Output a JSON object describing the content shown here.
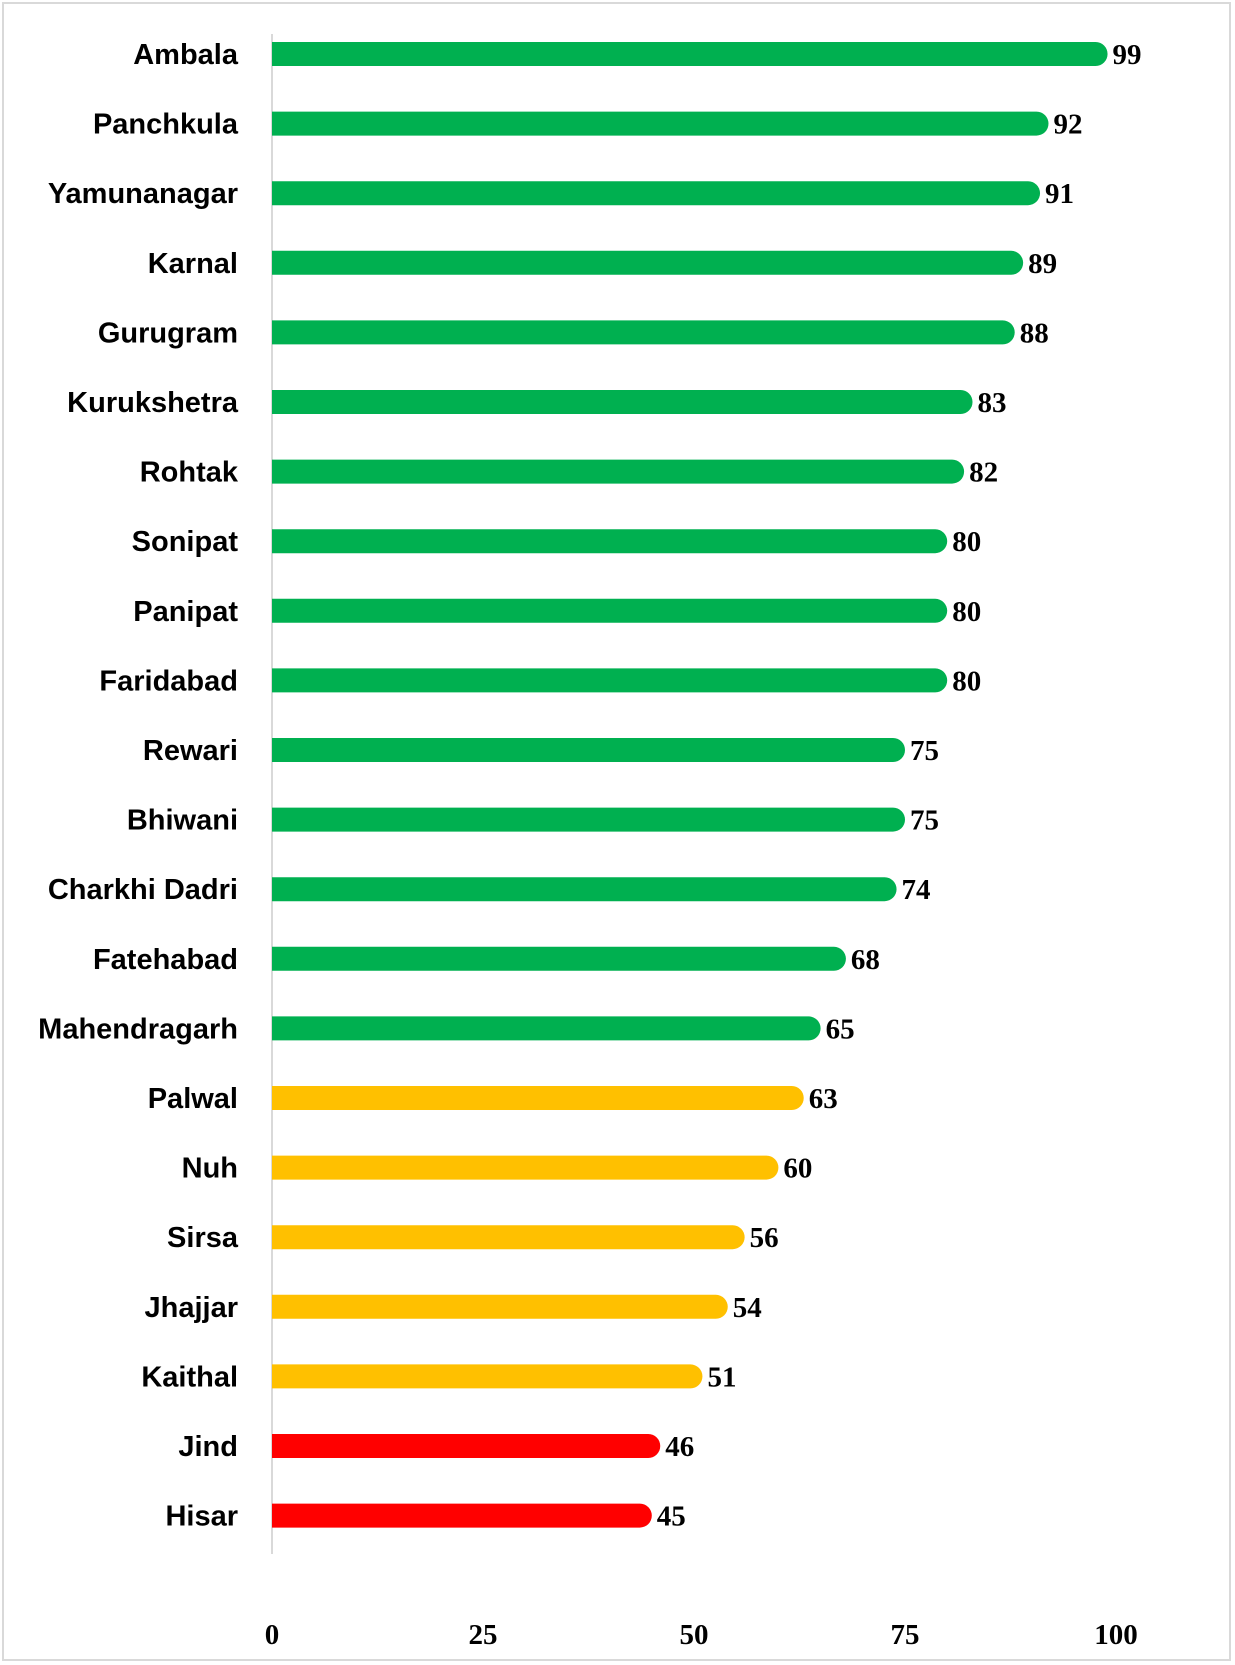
{
  "chart_data": {
    "type": "bar",
    "orientation": "horizontal",
    "title": "",
    "xlabel": "",
    "ylabel": "",
    "categories": [
      "Ambala",
      "Panchkula",
      "Yamunanagar",
      "Karnal",
      "Gurugram",
      "Kurukshetra",
      "Rohtak",
      "Sonipat",
      "Panipat",
      "Faridabad",
      "Rewari",
      "Bhiwani",
      "Charkhi Dadri",
      "Fatehabad",
      "Mahendragarh",
      "Palwal",
      "Nuh",
      "Sirsa",
      "Jhajjar",
      "Kaithal",
      "Jind",
      "Hisar"
    ],
    "values": [
      99,
      92,
      91,
      89,
      88,
      83,
      82,
      80,
      80,
      80,
      75,
      75,
      74,
      68,
      65,
      63,
      60,
      56,
      54,
      51,
      46,
      45
    ],
    "bar_colors": [
      "#00B050",
      "#00B050",
      "#00B050",
      "#00B050",
      "#00B050",
      "#00B050",
      "#00B050",
      "#00B050",
      "#00B050",
      "#00B050",
      "#00B050",
      "#00B050",
      "#00B050",
      "#00B050",
      "#00B050",
      "#FFC000",
      "#FFC000",
      "#FFC000",
      "#FFC000",
      "#FFC000",
      "#FF0000",
      "#FF0000"
    ],
    "xlim": [
      0,
      100
    ],
    "xticks": [
      0,
      25,
      50,
      75,
      100
    ],
    "grid": false,
    "legend": "none",
    "axis_color": "#d9d9d9"
  }
}
